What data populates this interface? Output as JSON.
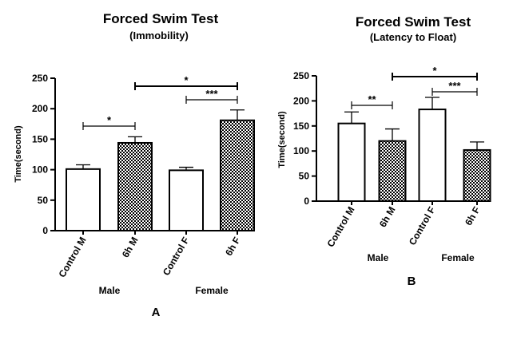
{
  "chart_data": [
    {
      "panel_label": "A",
      "type": "bar",
      "title": "Forced Swim Test",
      "subtitle": "(Immobility)",
      "ylabel": "Time(second)",
      "xlabel": "",
      "ylim": [
        0,
        250
      ],
      "yticks": [
        0,
        50,
        100,
        150,
        200,
        250
      ],
      "categories": [
        "Control M",
        "6h M",
        "Control F",
        "6h F"
      ],
      "groups": [
        {
          "label": "Male",
          "categories": [
            0,
            1
          ]
        },
        {
          "label": "Female",
          "categories": [
            2,
            3
          ]
        }
      ],
      "values": [
        101,
        144,
        99,
        181
      ],
      "errors": [
        7,
        10,
        5,
        17
      ],
      "fills": [
        "white",
        "checkered",
        "white",
        "checkered"
      ],
      "significance": [
        {
          "from": 0,
          "to": 1,
          "label": "*"
        },
        {
          "from": 1,
          "to": 3,
          "label": "*"
        },
        {
          "from": 2,
          "to": 3,
          "label": "***"
        }
      ],
      "grid": false
    },
    {
      "panel_label": "B",
      "type": "bar",
      "title": "Forced Swim Test",
      "subtitle": "(Latency to Float)",
      "ylabel": "Time(second)",
      "xlabel": "",
      "ylim": [
        0,
        250
      ],
      "yticks": [
        0,
        50,
        100,
        150,
        200,
        250
      ],
      "categories": [
        "Control M",
        "6h M",
        "Control F",
        "6h F"
      ],
      "groups": [
        {
          "label": "Male",
          "categories": [
            0,
            1
          ]
        },
        {
          "label": "Female",
          "categories": [
            2,
            3
          ]
        }
      ],
      "values": [
        155,
        120,
        183,
        102
      ],
      "errors": [
        23,
        24,
        24,
        16
      ],
      "fills": [
        "white",
        "checkered",
        "white",
        "checkered"
      ],
      "significance": [
        {
          "from": 0,
          "to": 1,
          "label": "**"
        },
        {
          "from": 1,
          "to": 3,
          "label": "*"
        },
        {
          "from": 2,
          "to": 3,
          "label": "***"
        }
      ],
      "grid": false
    }
  ],
  "colors": {
    "bar_outline": "#000000",
    "bar_fill": "#ffffff",
    "pattern_dark": "#000000"
  }
}
